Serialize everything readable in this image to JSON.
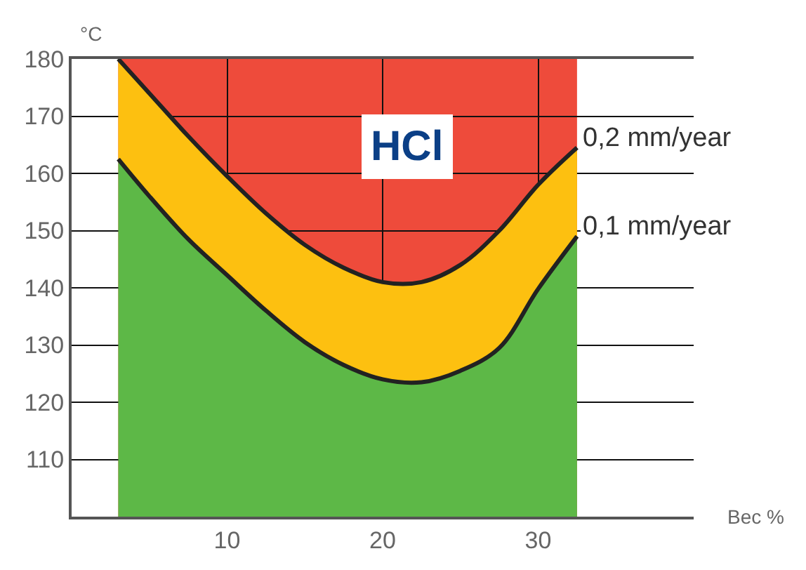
{
  "chart_data": {
    "type": "area",
    "xlabel": "Bec %",
    "ylabel": "°C",
    "annotations": [
      "HCl"
    ],
    "series": [
      {
        "name": "0,1 mm/year",
        "color": "#5db847",
        "values": [
          162.5,
          156,
          148.5,
          142.2,
          136,
          130.5,
          126.5,
          124,
          123.5,
          125.5,
          129.5,
          139.8,
          149
        ]
      },
      {
        "name": "0,2 mm/year",
        "color": "#fdc010",
        "values": [
          180,
          174,
          166.5,
          159.5,
          153,
          147.5,
          143.5,
          141,
          141,
          144,
          150,
          158,
          164.5
        ]
      }
    ],
    "x": [
      3,
      5,
      7.5,
      10,
      12.5,
      15,
      17.5,
      20,
      22.5,
      25,
      27.5,
      30,
      32.5
    ],
    "bands": [
      {
        "axis": "x",
        "from": 3,
        "to": 32.5,
        "color": "#ee4b3b"
      }
    ],
    "xlim": [
      0,
      40
    ],
    "xticks": [
      10,
      20,
      30
    ],
    "ylim": [
      100,
      180
    ],
    "yticks": [
      {
        "value": 100,
        "label": null
      },
      110,
      120,
      130,
      140,
      150,
      160,
      170,
      180
    ],
    "grid": true,
    "legend": false
  }
}
